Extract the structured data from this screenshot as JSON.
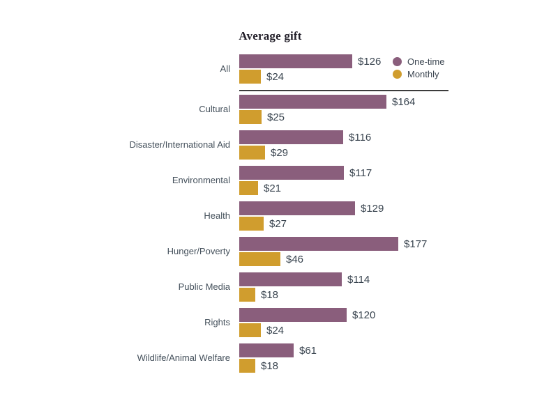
{
  "chart_data": {
    "type": "bar",
    "orientation": "horizontal",
    "title": "Average gift",
    "categories": [
      "All",
      "Cultural",
      "Disaster/International Aid",
      "Environmental",
      "Health",
      "Hunger/Poverty",
      "Public Media",
      "Rights",
      "Wildlife/Animal Welfare"
    ],
    "series": [
      {
        "name": "One-time",
        "color": "#8a5e7c",
        "values": [
          126,
          164,
          116,
          117,
          129,
          177,
          114,
          120,
          61
        ]
      },
      {
        "name": "Monthly",
        "color": "#d09d2e",
        "values": [
          24,
          25,
          29,
          21,
          27,
          46,
          18,
          24,
          18
        ]
      }
    ],
    "value_prefix": "$",
    "value_labels": {
      "one_time": [
        "$126",
        "$164",
        "$116",
        "$117",
        "$129",
        "$177",
        "$114",
        "$120",
        "$61"
      ],
      "monthly": [
        "$24",
        "$25",
        "$29",
        "$21",
        "$27",
        "$46",
        "$18",
        "$24",
        "$18"
      ]
    },
    "legend_position": "top-right",
    "separator_after_first_category": true,
    "grid": false,
    "axis_ticks_visible": false,
    "text_color": "#3d4752",
    "separator_color": "#3c3c3c"
  }
}
